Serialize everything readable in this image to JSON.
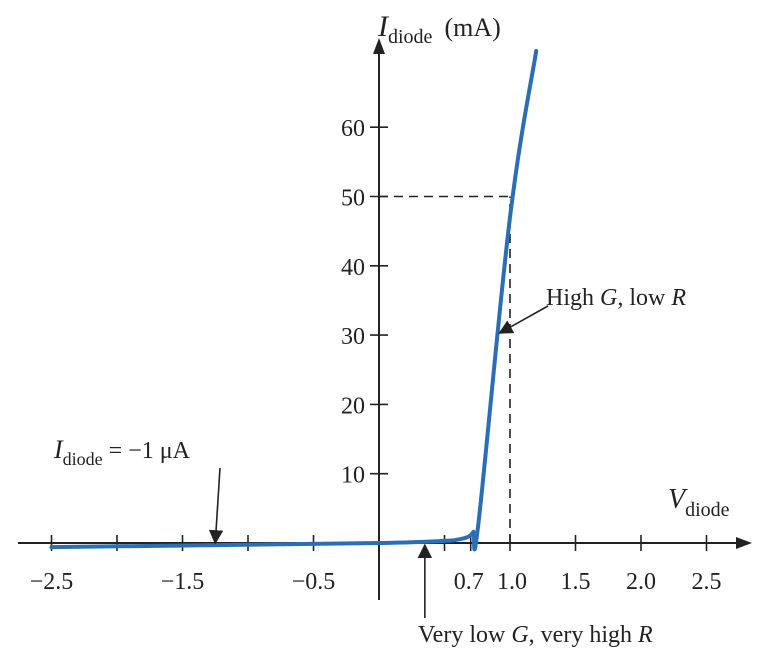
{
  "chart_data": {
    "type": "line",
    "title": "",
    "xlabel": {
      "main": "V",
      "sub": "diode"
    },
    "ylabel": {
      "main": "I",
      "sub": "diode",
      "unit": "(mA)"
    },
    "xlim": [
      -2.7,
      2.9
    ],
    "ylim": [
      -9,
      72
    ],
    "x_ticks": [
      -2.5,
      -2.0,
      -1.5,
      -1.0,
      -0.5,
      0.5,
      0.7,
      1.0,
      1.5,
      2.0,
      2.5
    ],
    "x_tick_labels": [
      {
        "x": -2.5,
        "label": "−2.5"
      },
      {
        "x": -1.5,
        "label": "−1.5"
      },
      {
        "x": -0.5,
        "label": "−0.5"
      },
      {
        "x": 0.7,
        "label": "0.7"
      },
      {
        "x": 1.0,
        "label": "1.0"
      },
      {
        "x": 1.5,
        "label": "1.5"
      },
      {
        "x": 2.0,
        "label": "2.0"
      },
      {
        "x": 2.5,
        "label": "2.5"
      }
    ],
    "y_ticks": [
      10,
      20,
      30,
      40,
      50,
      60
    ],
    "y_tick_labels": [
      "10",
      "20",
      "30",
      "40",
      "50",
      "60"
    ],
    "grid": false,
    "series": [
      {
        "color": "#2a6fb5",
        "x": [
          -2.5,
          -1.25,
          0,
          0.5,
          0.6,
          0.68,
          0.72,
          0.76,
          1.0,
          1.2
        ],
        "y": [
          -0.6,
          -0.3,
          0,
          0.3,
          0.5,
          0.9,
          1.6,
          3.0,
          47,
          71
        ]
      }
    ],
    "reference_lines": [
      {
        "type": "horizontal",
        "y": 50,
        "x_from": 0,
        "x_to": 1.0,
        "style": "dashed"
      },
      {
        "type": "vertical",
        "x": 1.0,
        "y_from": 0,
        "y_to": 50,
        "style": "dashed"
      }
    ],
    "annotations": [
      {
        "id": "reverse",
        "text_main": "I",
        "text_sub": "diode",
        "text_rest": " = −1 μA",
        "point": [
          -1.25,
          -0.3
        ]
      },
      {
        "id": "high-g",
        "text_parts": [
          "High ",
          "G",
          ", low ",
          "R"
        ],
        "point": [
          0.92,
          30
        ]
      },
      {
        "id": "low-g",
        "text_parts": [
          "Very low ",
          "G",
          ", very high ",
          "R"
        ],
        "point": [
          0.35,
          0
        ]
      }
    ]
  }
}
